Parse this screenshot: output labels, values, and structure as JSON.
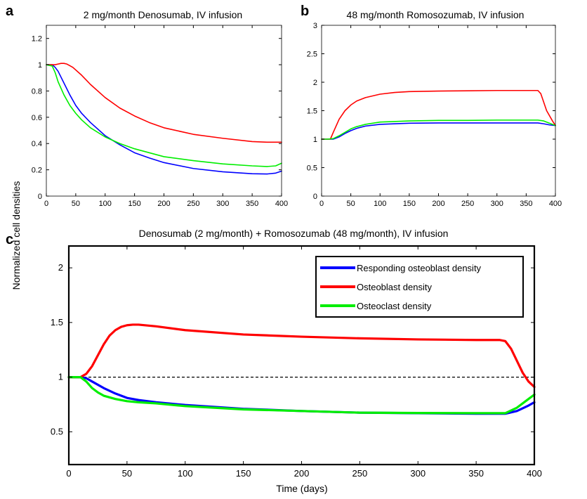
{
  "shared": {
    "ylabel": "Normalized cell densities",
    "xlabel": "Time (days)"
  },
  "colors": {
    "responding_osteoblast": "#0000ff",
    "osteoblast": "#ff0000",
    "osteoclast": "#00ee00",
    "reference": "#000000"
  },
  "chart_data": [
    {
      "panel": "a",
      "type": "line",
      "title": "2 mg/month Denosumab, IV infusion",
      "xlim": [
        0,
        400
      ],
      "ylim": [
        0,
        1.3
      ],
      "xticks": [
        0,
        50,
        100,
        150,
        200,
        250,
        300,
        350,
        400
      ],
      "yticks": [
        0,
        0.2,
        0.4,
        0.6,
        0.8,
        1,
        1.2
      ],
      "ytick_labels": [
        "0",
        "0.2",
        "0.4",
        "0.6",
        "0.8",
        "1",
        "1.2"
      ],
      "series": [
        {
          "key": "responding_osteoblast",
          "points": [
            [
              0,
              1
            ],
            [
              10,
              1
            ],
            [
              15,
              0.98
            ],
            [
              20,
              0.95
            ],
            [
              30,
              0.86
            ],
            [
              40,
              0.77
            ],
            [
              50,
              0.69
            ],
            [
              60,
              0.63
            ],
            [
              75,
              0.56
            ],
            [
              100,
              0.46
            ],
            [
              125,
              0.39
            ],
            [
              150,
              0.33
            ],
            [
              175,
              0.29
            ],
            [
              200,
              0.255
            ],
            [
              250,
              0.21
            ],
            [
              300,
              0.185
            ],
            [
              350,
              0.17
            ],
            [
              375,
              0.168
            ],
            [
              390,
              0.175
            ],
            [
              400,
              0.19
            ]
          ]
        },
        {
          "key": "osteoblast",
          "points": [
            [
              0,
              1
            ],
            [
              10,
              1
            ],
            [
              15,
              1
            ],
            [
              20,
              1.005
            ],
            [
              25,
              1.01
            ],
            [
              30,
              1.01
            ],
            [
              35,
              1.005
            ],
            [
              45,
              0.98
            ],
            [
              60,
              0.92
            ],
            [
              75,
              0.85
            ],
            [
              100,
              0.75
            ],
            [
              125,
              0.67
            ],
            [
              150,
              0.61
            ],
            [
              175,
              0.56
            ],
            [
              200,
              0.52
            ],
            [
              250,
              0.47
            ],
            [
              300,
              0.44
            ],
            [
              350,
              0.415
            ],
            [
              375,
              0.41
            ],
            [
              400,
              0.41
            ]
          ]
        },
        {
          "key": "osteoclast",
          "points": [
            [
              0,
              1
            ],
            [
              10,
              0.99
            ],
            [
              15,
              0.94
            ],
            [
              20,
              0.87
            ],
            [
              30,
              0.77
            ],
            [
              40,
              0.69
            ],
            [
              50,
              0.63
            ],
            [
              60,
              0.58
            ],
            [
              75,
              0.52
            ],
            [
              100,
              0.45
            ],
            [
              125,
              0.4
            ],
            [
              150,
              0.36
            ],
            [
              175,
              0.33
            ],
            [
              200,
              0.3
            ],
            [
              250,
              0.27
            ],
            [
              300,
              0.245
            ],
            [
              350,
              0.23
            ],
            [
              375,
              0.225
            ],
            [
              390,
              0.23
            ],
            [
              400,
              0.25
            ]
          ]
        }
      ]
    },
    {
      "panel": "b",
      "type": "line",
      "title": "48 mg/month Romosozumab, IV infusion",
      "xlim": [
        0,
        400
      ],
      "ylim": [
        0,
        3
      ],
      "xticks": [
        0,
        50,
        100,
        150,
        200,
        250,
        300,
        350,
        400
      ],
      "yticks": [
        0,
        0.5,
        1,
        1.5,
        2,
        2.5,
        3
      ],
      "ytick_labels": [
        "0",
        "0.5",
        "1",
        "1.5",
        "2",
        "2.5",
        "3"
      ],
      "series": [
        {
          "key": "responding_osteoblast",
          "points": [
            [
              0,
              1
            ],
            [
              10,
              1
            ],
            [
              20,
              1
            ],
            [
              30,
              1.04
            ],
            [
              40,
              1.1
            ],
            [
              50,
              1.15
            ],
            [
              60,
              1.19
            ],
            [
              75,
              1.23
            ],
            [
              100,
              1.26
            ],
            [
              150,
              1.28
            ],
            [
              200,
              1.285
            ],
            [
              250,
              1.285
            ],
            [
              300,
              1.285
            ],
            [
              350,
              1.285
            ],
            [
              370,
              1.285
            ],
            [
              380,
              1.27
            ],
            [
              390,
              1.25
            ],
            [
              400,
              1.24
            ]
          ]
        },
        {
          "key": "osteoblast",
          "points": [
            [
              0,
              1
            ],
            [
              10,
              1
            ],
            [
              15,
              1.0
            ],
            [
              20,
              1.12
            ],
            [
              30,
              1.35
            ],
            [
              40,
              1.5
            ],
            [
              50,
              1.6
            ],
            [
              60,
              1.67
            ],
            [
              75,
              1.73
            ],
            [
              100,
              1.79
            ],
            [
              125,
              1.82
            ],
            [
              150,
              1.835
            ],
            [
              200,
              1.845
            ],
            [
              250,
              1.85
            ],
            [
              300,
              1.855
            ],
            [
              350,
              1.855
            ],
            [
              370,
              1.855
            ],
            [
              375,
              1.8
            ],
            [
              385,
              1.5
            ],
            [
              395,
              1.32
            ],
            [
              400,
              1.24
            ]
          ]
        },
        {
          "key": "osteoclast",
          "points": [
            [
              0,
              1
            ],
            [
              10,
              1
            ],
            [
              20,
              1.01
            ],
            [
              30,
              1.06
            ],
            [
              40,
              1.12
            ],
            [
              50,
              1.18
            ],
            [
              60,
              1.22
            ],
            [
              75,
              1.26
            ],
            [
              100,
              1.3
            ],
            [
              150,
              1.32
            ],
            [
              200,
              1.33
            ],
            [
              250,
              1.33
            ],
            [
              300,
              1.335
            ],
            [
              350,
              1.335
            ],
            [
              370,
              1.335
            ],
            [
              380,
              1.32
            ],
            [
              390,
              1.28
            ],
            [
              400,
              1.24
            ]
          ]
        }
      ]
    },
    {
      "panel": "c",
      "type": "line",
      "title": "Denosumab (2 mg/month) + Romosozumab (48 mg/month), IV infusion",
      "xlim": [
        0,
        400
      ],
      "ylim": [
        0.2,
        2.2
      ],
      "xticks": [
        0,
        50,
        100,
        150,
        200,
        250,
        300,
        350,
        400
      ],
      "yticks": [
        0.5,
        1,
        1.5,
        2
      ],
      "ytick_labels": [
        "0.5",
        "1",
        "1.5",
        "2"
      ],
      "reference_line": 1,
      "legend": [
        "Responding osteoblast density",
        "Osteoblast density",
        "Osteoclast density"
      ],
      "legend_position": "top-right",
      "series": [
        {
          "key": "responding_osteoblast",
          "name": "Responding osteoblast density",
          "points": [
            [
              0,
              1
            ],
            [
              10,
              1
            ],
            [
              15,
              0.99
            ],
            [
              20,
              0.96
            ],
            [
              30,
              0.9
            ],
            [
              40,
              0.85
            ],
            [
              50,
              0.81
            ],
            [
              60,
              0.79
            ],
            [
              75,
              0.77
            ],
            [
              100,
              0.745
            ],
            [
              150,
              0.71
            ],
            [
              200,
              0.69
            ],
            [
              250,
              0.675
            ],
            [
              300,
              0.67
            ],
            [
              350,
              0.665
            ],
            [
              375,
              0.665
            ],
            [
              385,
              0.69
            ],
            [
              395,
              0.74
            ],
            [
              400,
              0.77
            ]
          ]
        },
        {
          "key": "osteoblast",
          "name": "Osteoblast density",
          "points": [
            [
              0,
              1
            ],
            [
              10,
              1
            ],
            [
              15,
              1.03
            ],
            [
              20,
              1.1
            ],
            [
              25,
              1.2
            ],
            [
              30,
              1.3
            ],
            [
              35,
              1.38
            ],
            [
              40,
              1.43
            ],
            [
              45,
              1.46
            ],
            [
              50,
              1.475
            ],
            [
              55,
              1.48
            ],
            [
              60,
              1.48
            ],
            [
              75,
              1.465
            ],
            [
              100,
              1.43
            ],
            [
              150,
              1.39
            ],
            [
              200,
              1.37
            ],
            [
              250,
              1.355
            ],
            [
              300,
              1.345
            ],
            [
              350,
              1.34
            ],
            [
              370,
              1.34
            ],
            [
              375,
              1.33
            ],
            [
              380,
              1.26
            ],
            [
              385,
              1.15
            ],
            [
              390,
              1.04
            ],
            [
              395,
              0.96
            ],
            [
              400,
              0.91
            ]
          ]
        },
        {
          "key": "osteoclast",
          "name": "Osteoclast density",
          "points": [
            [
              0,
              1
            ],
            [
              10,
              1
            ],
            [
              15,
              0.96
            ],
            [
              20,
              0.9
            ],
            [
              25,
              0.86
            ],
            [
              30,
              0.83
            ],
            [
              40,
              0.8
            ],
            [
              50,
              0.78
            ],
            [
              60,
              0.77
            ],
            [
              75,
              0.76
            ],
            [
              100,
              0.735
            ],
            [
              150,
              0.705
            ],
            [
              200,
              0.69
            ],
            [
              250,
              0.675
            ],
            [
              300,
              0.672
            ],
            [
              350,
              0.67
            ],
            [
              375,
              0.67
            ],
            [
              385,
              0.72
            ],
            [
              395,
              0.8
            ],
            [
              400,
              0.84
            ]
          ]
        }
      ]
    }
  ]
}
